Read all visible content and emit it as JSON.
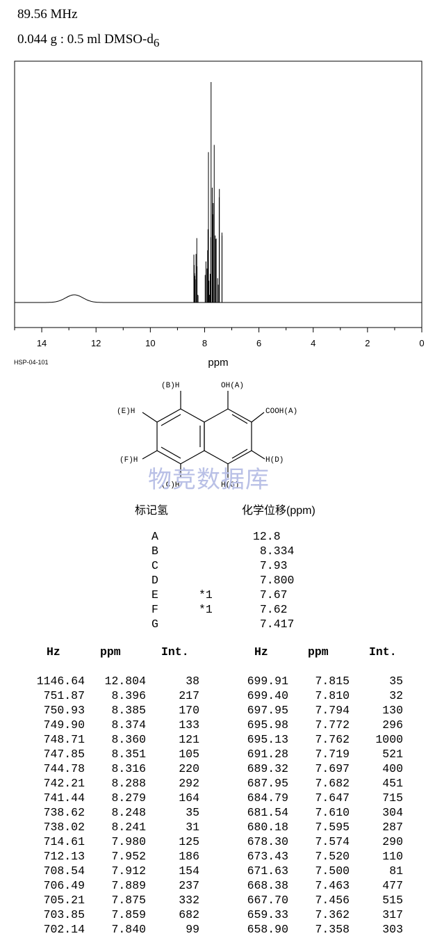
{
  "header": {
    "frequency": "89.56 MHz",
    "sample": "0.044 g : 0.5 ml DMSO-d",
    "sample_sub": "6"
  },
  "spectrum_code": "HSP-04-101",
  "chart_data": {
    "type": "line",
    "xlabel": "ppm",
    "xlim": [
      15,
      0
    ],
    "x_ticks": [
      "14",
      "12",
      "10",
      "8",
      "6",
      "4",
      "2",
      "0"
    ],
    "peaks": [
      {
        "ppm": 12.804,
        "int": 38
      },
      {
        "ppm": 8.396,
        "int": 217
      },
      {
        "ppm": 8.385,
        "int": 170
      },
      {
        "ppm": 8.374,
        "int": 133
      },
      {
        "ppm": 8.36,
        "int": 121
      },
      {
        "ppm": 8.351,
        "int": 105
      },
      {
        "ppm": 8.316,
        "int": 220
      },
      {
        "ppm": 8.288,
        "int": 292
      },
      {
        "ppm": 8.279,
        "int": 164
      },
      {
        "ppm": 8.248,
        "int": 35
      },
      {
        "ppm": 8.241,
        "int": 31
      },
      {
        "ppm": 7.98,
        "int": 125
      },
      {
        "ppm": 7.952,
        "int": 186
      },
      {
        "ppm": 7.912,
        "int": 154
      },
      {
        "ppm": 7.889,
        "int": 237
      },
      {
        "ppm": 7.875,
        "int": 332
      },
      {
        "ppm": 7.859,
        "int": 682
      },
      {
        "ppm": 7.84,
        "int": 99
      },
      {
        "ppm": 7.815,
        "int": 35
      },
      {
        "ppm": 7.81,
        "int": 32
      },
      {
        "ppm": 7.794,
        "int": 130
      },
      {
        "ppm": 7.772,
        "int": 296
      },
      {
        "ppm": 7.762,
        "int": 1000
      },
      {
        "ppm": 7.719,
        "int": 521
      },
      {
        "ppm": 7.697,
        "int": 400
      },
      {
        "ppm": 7.682,
        "int": 451
      },
      {
        "ppm": 7.647,
        "int": 715
      },
      {
        "ppm": 7.61,
        "int": 304
      },
      {
        "ppm": 7.595,
        "int": 287
      },
      {
        "ppm": 7.574,
        "int": 290
      },
      {
        "ppm": 7.52,
        "int": 110
      },
      {
        "ppm": 7.5,
        "int": 81
      },
      {
        "ppm": 7.463,
        "int": 477
      },
      {
        "ppm": 7.456,
        "int": 515
      },
      {
        "ppm": 7.362,
        "int": 317
      },
      {
        "ppm": 7.358,
        "int": 303
      }
    ]
  },
  "structure_labels": {
    "B": "(B)H",
    "OH": "OH(A)",
    "E": "(E)H",
    "COOH": "COOH(A)",
    "F": "(F)H",
    "D": "H(D)",
    "C": "(C)H",
    "G": "H(G)"
  },
  "watermark": "物竞数据库",
  "shift_table": {
    "col1_header": "标记氢",
    "col2_header": "化学位移(ppm)",
    "rows": [
      {
        "label": "A",
        "note": "",
        "shift": "12.8"
      },
      {
        "label": "B",
        "note": "",
        "shift": " 8.334"
      },
      {
        "label": "C",
        "note": "",
        "shift": " 7.93"
      },
      {
        "label": "D",
        "note": "",
        "shift": " 7.800"
      },
      {
        "label": "E",
        "note": "*1",
        "shift": " 7.67"
      },
      {
        "label": "F",
        "note": "*1",
        "shift": " 7.62"
      },
      {
        "label": "G",
        "note": "",
        "shift": " 7.417"
      }
    ]
  },
  "peak_table": {
    "headers": [
      "Hz",
      "ppm",
      "Int."
    ],
    "left": [
      [
        "1146.64",
        "12.804",
        "38"
      ],
      [
        "751.87",
        "8.396",
        "217"
      ],
      [
        "750.93",
        "8.385",
        "170"
      ],
      [
        "749.90",
        "8.374",
        "133"
      ],
      [
        "748.71",
        "8.360",
        "121"
      ],
      [
        "747.85",
        "8.351",
        "105"
      ],
      [
        "744.78",
        "8.316",
        "220"
      ],
      [
        "742.21",
        "8.288",
        "292"
      ],
      [
        "741.44",
        "8.279",
        "164"
      ],
      [
        "738.62",
        "8.248",
        "35"
      ],
      [
        "738.02",
        "8.241",
        "31"
      ],
      [
        "714.61",
        "7.980",
        "125"
      ],
      [
        "712.13",
        "7.952",
        "186"
      ],
      [
        "708.54",
        "7.912",
        "154"
      ],
      [
        "706.49",
        "7.889",
        "237"
      ],
      [
        "705.21",
        "7.875",
        "332"
      ],
      [
        "703.85",
        "7.859",
        "682"
      ],
      [
        "702.14",
        "7.840",
        "99"
      ]
    ],
    "right": [
      [
        "699.91",
        "7.815",
        "35"
      ],
      [
        "699.40",
        "7.810",
        "32"
      ],
      [
        "697.95",
        "7.794",
        "130"
      ],
      [
        "695.98",
        "7.772",
        "296"
      ],
      [
        "695.13",
        "7.762",
        "1000"
      ],
      [
        "691.28",
        "7.719",
        "521"
      ],
      [
        "689.32",
        "7.697",
        "400"
      ],
      [
        "687.95",
        "7.682",
        "451"
      ],
      [
        "684.79",
        "7.647",
        "715"
      ],
      [
        "681.54",
        "7.610",
        "304"
      ],
      [
        "680.18",
        "7.595",
        "287"
      ],
      [
        "678.30",
        "7.574",
        "290"
      ],
      [
        "673.43",
        "7.520",
        "110"
      ],
      [
        "671.63",
        "7.500",
        "81"
      ],
      [
        "668.38",
        "7.463",
        "477"
      ],
      [
        "667.70",
        "7.456",
        "515"
      ],
      [
        "659.33",
        "7.362",
        "317"
      ],
      [
        "658.90",
        "7.358",
        "303"
      ]
    ]
  }
}
